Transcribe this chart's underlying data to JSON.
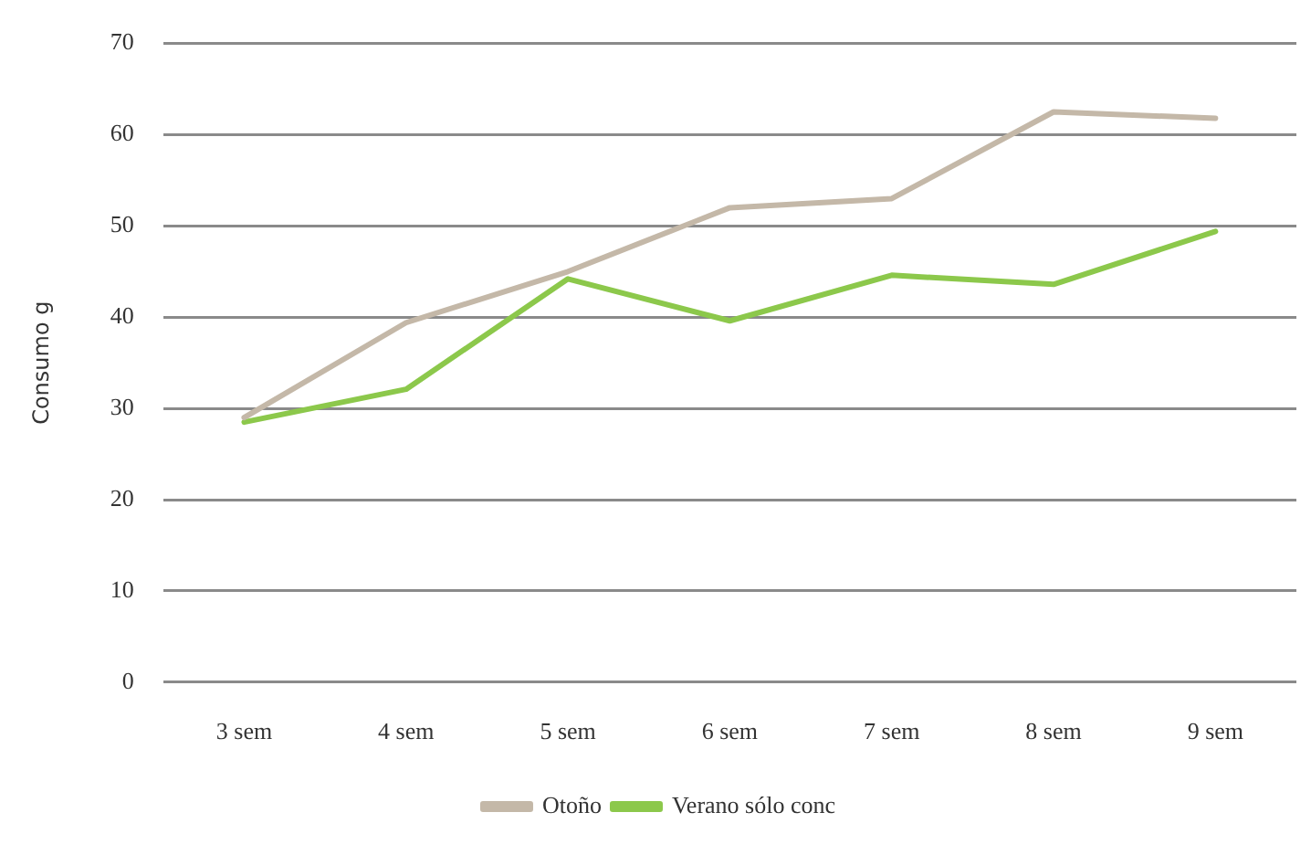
{
  "chart_data": {
    "type": "line",
    "ylabel": "Consumo g",
    "categories": [
      "3 sem",
      "4 sem",
      "5 sem",
      "6 sem",
      "7 sem",
      "8 sem",
      "9 sem"
    ],
    "series": [
      {
        "name": "Otoño",
        "color": "#c4b8a8",
        "values": [
          29,
          39.4,
          45,
          52,
          53,
          62.5,
          61.8
        ]
      },
      {
        "name": "Verano sólo conc",
        "color": "#8cc84b",
        "values": [
          28.5,
          32.1,
          44.2,
          39.6,
          44.6,
          43.6,
          49.4
        ]
      }
    ],
    "ylim": [
      0,
      70
    ],
    "yticks": [
      0,
      10,
      20,
      30,
      40,
      50,
      60,
      70
    ],
    "grid": "y",
    "legend": "bottom",
    "marker": "none",
    "line_style": "solid"
  }
}
